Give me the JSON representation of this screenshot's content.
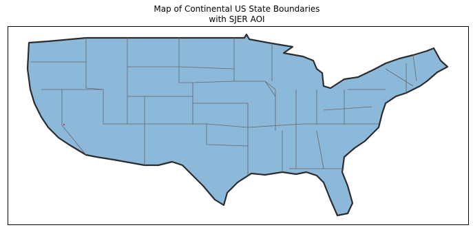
{
  "map": {
    "title": [
      "Map of Continental US State Boundaries",
      "with SJER AOI"
    ]
  }
}
